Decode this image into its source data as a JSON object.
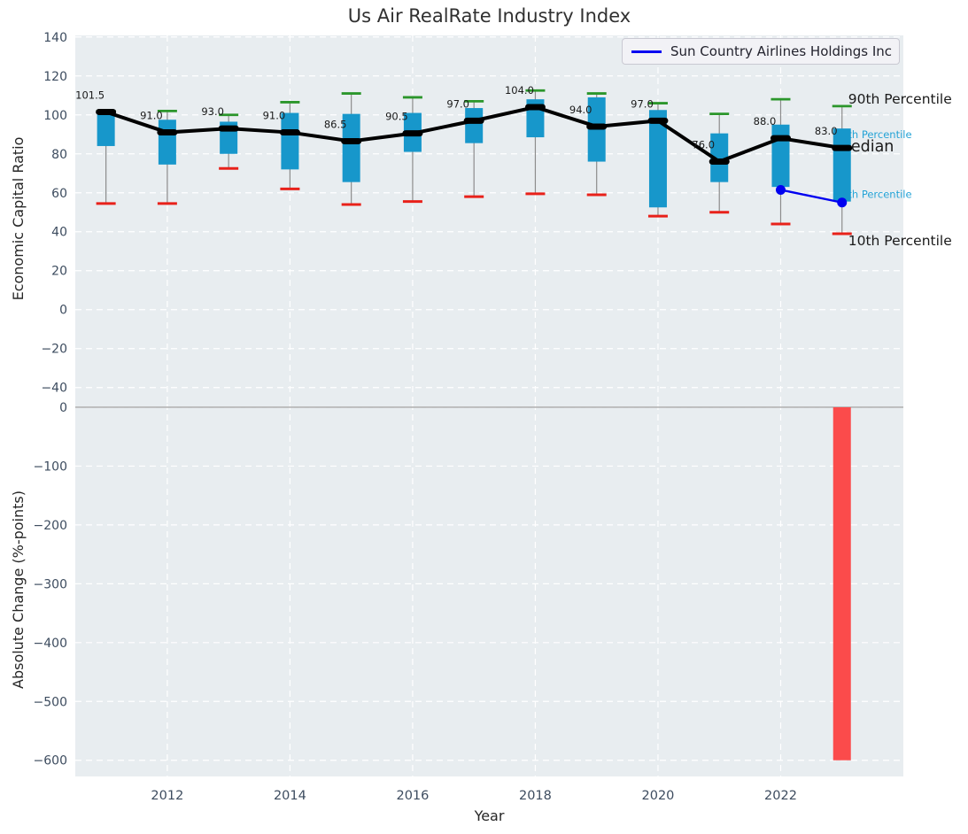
{
  "title": "Us Air RealRate Industry Index",
  "axes": {
    "top_ylabel": "Economic Capital Ratio",
    "bottom_ylabel": "Absolute Change (%-points)",
    "xlabel": "Year"
  },
  "legend": {
    "label": "Sun Country Airlines Holdings Inc"
  },
  "annotations": {
    "p90": "90th Percentile",
    "p75": "75th Percentile",
    "median": "Median",
    "p25": "25th Percentile",
    "p10": "10th Percentile"
  },
  "colors": {
    "panel_bg": "#e8edf0",
    "grid": "#ffffff",
    "box_fill": "#1797cb",
    "cap_90": "#2b962b",
    "cap_10": "#e8211a",
    "whisker": "#8c8c8c",
    "median_line": "#000000",
    "company_line": "#0000f0",
    "bar_fill": "#fb4b4b",
    "zero_line": "#b3b3b3",
    "tick_text": "#3d4c5f",
    "annotation_black": "#1a1a1a",
    "annotation_blue": "#25a3d6",
    "value_label": "#1a1a1a"
  },
  "chart_data": [
    {
      "type": "box-whisker-with-median-line",
      "title": "Us Air RealRate Industry Index",
      "ylabel": "Economic Capital Ratio",
      "x": [
        2011,
        2012,
        2013,
        2014,
        2015,
        2016,
        2017,
        2018,
        2019,
        2020,
        2021,
        2022,
        2023
      ],
      "series": [
        {
          "name": "90th Percentile",
          "values": [
            102,
            102,
            100,
            106.5,
            111,
            109,
            107,
            112.5,
            111,
            106,
            100.5,
            108,
            104.5
          ]
        },
        {
          "name": "75th Percentile",
          "values": [
            101.5,
            97.5,
            96.5,
            101,
            100.5,
            101,
            103.5,
            108,
            109,
            102.5,
            90.5,
            95,
            93
          ]
        },
        {
          "name": "Median",
          "values": [
            101.5,
            91,
            93,
            91,
            86.5,
            90.5,
            97,
            104,
            94,
            97,
            76,
            88,
            83
          ]
        },
        {
          "name": "25th Percentile",
          "values": [
            84,
            74.5,
            80,
            72,
            65.5,
            81,
            85.5,
            88.5,
            76,
            52.5,
            65.5,
            63,
            55.5
          ]
        },
        {
          "name": "10th Percentile",
          "values": [
            54.5,
            54.5,
            72.5,
            62,
            54,
            55.5,
            58,
            59.5,
            59,
            48,
            50,
            44,
            39
          ]
        }
      ],
      "median_labels": [
        "101.5",
        "91.0",
        "93.0",
        "91.0",
        "86.5",
        "90.5",
        "97.0",
        "104.0",
        "94.0",
        "97.0",
        "76.0",
        "88.0",
        "83.0"
      ],
      "company_line": {
        "name": "Sun Country Airlines Holdings Inc",
        "x": [
          2022,
          2023
        ],
        "y": [
          61.5,
          55
        ]
      },
      "xlim": [
        2010.5,
        2024.0
      ],
      "ylim": [
        -48.3,
        140.8
      ],
      "yticks": [
        140,
        120,
        100,
        80,
        60,
        40,
        20,
        0,
        -20,
        -40
      ],
      "ytick_labels": [
        "140",
        "120",
        "100",
        "80",
        "60",
        "40",
        "20",
        "0",
        "−20",
        "−40"
      ],
      "xticks": [
        2012,
        2014,
        2016,
        2018,
        2020,
        2022
      ],
      "xtick_labels": [
        "2012",
        "2014",
        "2016",
        "2018",
        "2020",
        "2022"
      ],
      "grid": "white-dashed",
      "legend_position": "upper right"
    },
    {
      "type": "bar",
      "ylabel": "Absolute Change (%-points)",
      "xlabel": "Year",
      "x": [
        2023
      ],
      "values": [
        -600
      ],
      "xlim": [
        2010.5,
        2024.0
      ],
      "ylim": [
        -627.5,
        6
      ],
      "yticks": [
        0,
        -100,
        -200,
        -300,
        -400,
        -500,
        -600
      ],
      "ytick_labels": [
        "0",
        "−100",
        "−200",
        "−300",
        "−400",
        "−500",
        "−600"
      ],
      "zero_line": true,
      "grid": "white-dashed"
    }
  ]
}
